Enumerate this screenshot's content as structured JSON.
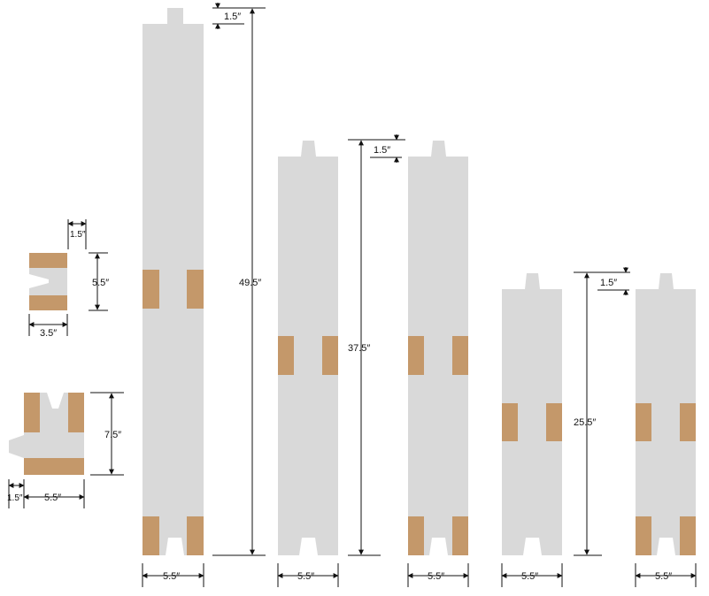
{
  "colors": {
    "board": "#d9d9d9",
    "wood": "#c4986a",
    "line": "#111111"
  },
  "labels": {
    "tenon": "1.5″",
    "height_49": "49.5″",
    "height_37": "37.5″",
    "height_25": "25.5″",
    "width": "5.5″",
    "sm_tenon": "1.5″",
    "sm_height": "5.5″",
    "sm_width": "3.5″",
    "bracket_height": "7.5″",
    "bracket_tenon": "1.5″",
    "bracket_width": "5.5″"
  }
}
